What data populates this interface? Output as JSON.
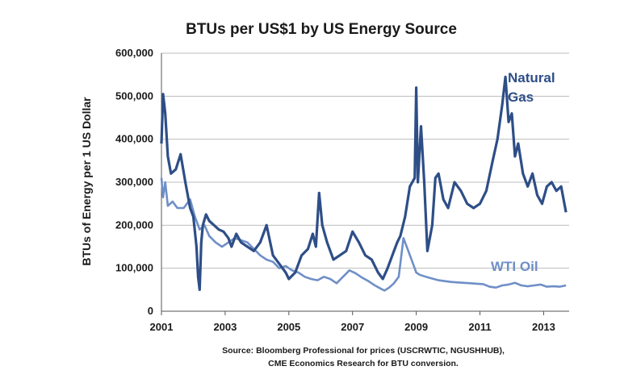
{
  "chart_data": {
    "type": "line",
    "title": "BTUs per US$1 by US Energy Source",
    "ylabel": "BTUs of Energy per 1 US Dollar",
    "xlabel": "",
    "xlim": [
      2001,
      2013.8
    ],
    "ylim": [
      0,
      600000
    ],
    "x_ticks": [
      2001,
      2003,
      2005,
      2007,
      2009,
      2011,
      2013
    ],
    "x_tick_labels": [
      "2001",
      "2003",
      "2005",
      "2007",
      "2009",
      "2011",
      "2013"
    ],
    "y_ticks": [
      0,
      100000,
      200000,
      300000,
      400000,
      500000,
      600000
    ],
    "y_tick_labels": [
      "0",
      "100,000",
      "200,000",
      "300,000",
      "400,000",
      "500,000",
      "600,000"
    ],
    "grid": "horizontal",
    "colors": {
      "Natural Gas": "#2e4e87",
      "WTI Oil": "#6f8fc7"
    },
    "series": [
      {
        "name": "Natural Gas",
        "label_lines": [
          "Natural",
          "Gas"
        ],
        "x": [
          2001.0,
          2001.05,
          2001.12,
          2001.2,
          2001.3,
          2001.45,
          2001.6,
          2001.75,
          2001.9,
          2002.0,
          2002.1,
          2002.15,
          2002.2,
          2002.25,
          2002.3,
          2002.4,
          2002.5,
          2002.65,
          2002.8,
          2002.95,
          2003.1,
          2003.2,
          2003.35,
          2003.5,
          2003.7,
          2003.9,
          2004.1,
          2004.3,
          2004.5,
          2004.7,
          2004.9,
          2005.0,
          2005.2,
          2005.4,
          2005.6,
          2005.75,
          2005.85,
          2005.95,
          2006.05,
          2006.2,
          2006.4,
          2006.6,
          2006.8,
          2007.0,
          2007.2,
          2007.4,
          2007.6,
          2007.8,
          2007.95,
          2008.1,
          2008.25,
          2008.4,
          2008.5,
          2008.65,
          2008.8,
          2008.95,
          2009.0,
          2009.05,
          2009.15,
          2009.25,
          2009.35,
          2009.5,
          2009.6,
          2009.7,
          2009.85,
          2010.0,
          2010.2,
          2010.4,
          2010.6,
          2010.8,
          2011.0,
          2011.2,
          2011.4,
          2011.55,
          2011.7,
          2011.8,
          2011.9,
          2012.0,
          2012.1,
          2012.2,
          2012.35,
          2012.5,
          2012.65,
          2012.8,
          2012.95,
          2013.1,
          2013.25,
          2013.4,
          2013.55,
          2013.7
        ],
        "values": [
          390000,
          505000,
          460000,
          360000,
          320000,
          330000,
          365000,
          300000,
          240000,
          220000,
          150000,
          80000,
          50000,
          160000,
          200000,
          225000,
          210000,
          200000,
          190000,
          185000,
          170000,
          150000,
          180000,
          160000,
          150000,
          140000,
          160000,
          200000,
          130000,
          110000,
          90000,
          75000,
          90000,
          130000,
          145000,
          180000,
          150000,
          275000,
          200000,
          160000,
          120000,
          130000,
          140000,
          185000,
          160000,
          130000,
          120000,
          90000,
          75000,
          100000,
          130000,
          160000,
          175000,
          220000,
          290000,
          310000,
          520000,
          300000,
          430000,
          300000,
          140000,
          200000,
          310000,
          320000,
          260000,
          240000,
          300000,
          280000,
          250000,
          240000,
          250000,
          280000,
          350000,
          400000,
          480000,
          545000,
          440000,
          460000,
          360000,
          390000,
          320000,
          290000,
          320000,
          270000,
          250000,
          290000,
          300000,
          280000,
          290000,
          230000
        ]
      },
      {
        "name": "WTI Oil",
        "label_lines": [
          "WTI Oil"
        ],
        "x": [
          2001.0,
          2001.05,
          2001.12,
          2001.2,
          2001.35,
          2001.5,
          2001.7,
          2001.9,
          2002.05,
          2002.2,
          2002.35,
          2002.5,
          2002.7,
          2002.9,
          2003.1,
          2003.3,
          2003.5,
          2003.7,
          2003.9,
          2004.1,
          2004.3,
          2004.5,
          2004.7,
          2004.9,
          2005.1,
          2005.3,
          2005.5,
          2005.7,
          2005.9,
          2006.1,
          2006.3,
          2006.5,
          2006.7,
          2006.9,
          2007.1,
          2007.3,
          2007.5,
          2007.7,
          2007.9,
          2008.0,
          2008.15,
          2008.3,
          2008.45,
          2008.6,
          2008.75,
          2008.9,
          2009.0,
          2009.1,
          2009.3,
          2009.5,
          2009.7,
          2009.9,
          2010.1,
          2010.3,
          2010.5,
          2010.7,
          2010.9,
          2011.1,
          2011.3,
          2011.5,
          2011.7,
          2011.9,
          2012.1,
          2012.3,
          2012.5,
          2012.7,
          2012.9,
          2013.1,
          2013.3,
          2013.5,
          2013.7
        ],
        "values": [
          310000,
          265000,
          300000,
          245000,
          255000,
          240000,
          240000,
          260000,
          220000,
          190000,
          200000,
          175000,
          160000,
          150000,
          160000,
          170000,
          165000,
          160000,
          145000,
          130000,
          120000,
          115000,
          100000,
          105000,
          95000,
          90000,
          80000,
          75000,
          72000,
          80000,
          75000,
          65000,
          80000,
          95000,
          88000,
          78000,
          70000,
          60000,
          52000,
          48000,
          55000,
          65000,
          80000,
          170000,
          140000,
          110000,
          90000,
          85000,
          80000,
          76000,
          72000,
          70000,
          68000,
          67000,
          66000,
          65000,
          64000,
          63000,
          57000,
          55000,
          60000,
          62000,
          66000,
          60000,
          58000,
          60000,
          62000,
          57000,
          58000,
          57000,
          60000
        ]
      }
    ],
    "source_lines": [
      "Source: Bloomberg Professional for prices (USCRWTIC,  NGUSHHUB),",
      "CME Economics Research for BTU conversion."
    ]
  }
}
